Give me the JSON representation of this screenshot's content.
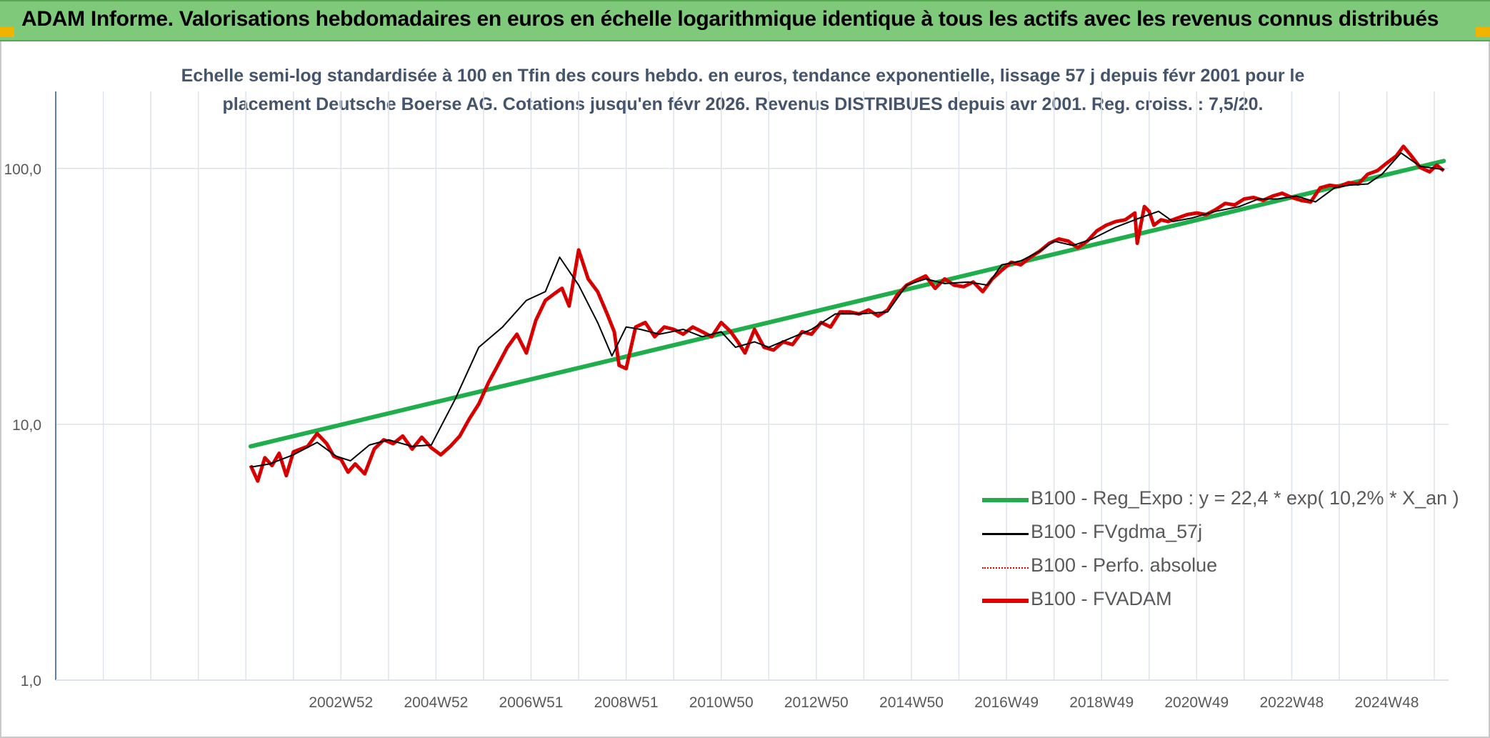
{
  "banner": {
    "title": "ADAM Informe. Valorisations hebdomadaires en euros en échelle logarithmique identique à tous les actifs avec les revenus connus distribués"
  },
  "colors": {
    "banner_bg": "#7fc97a",
    "corner": "#f2b200",
    "reg_expo": "#1fae4b",
    "fvgdma": "#000000",
    "perfo": "#e00000",
    "fvadam": "#e00000",
    "grid": "#dde3ea",
    "axis": "#5b7fb5"
  },
  "chart_data": {
    "type": "line",
    "title": "Echelle semi-log standardisée à 100 en Tfin des cours hebdo. en euros, tendance exponentielle, lissage 57 j depuis févr 2001 pour le placement Deutsche Boerse AG. Cotations jusqu'en févr 2026. Revenus DISTRIBUES depuis avr 2001. Reg. croiss. : 7,5/20.",
    "y_scale": "log",
    "ylim": [
      1,
      200
    ],
    "xlim": [
      1997.0,
      2026.3
    ],
    "y_ticks": [
      {
        "value": 1,
        "label": "1,0"
      },
      {
        "value": 10,
        "label": "10,0"
      },
      {
        "value": 100,
        "label": "100,0"
      }
    ],
    "x_ticks": [
      {
        "value": 2003.0,
        "label": "2002W52"
      },
      {
        "value": 2005.0,
        "label": "2004W52"
      },
      {
        "value": 2007.0,
        "label": "2006W51"
      },
      {
        "value": 2009.0,
        "label": "2008W51"
      },
      {
        "value": 2011.0,
        "label": "2010W50"
      },
      {
        "value": 2013.0,
        "label": "2012W50"
      },
      {
        "value": 2015.0,
        "label": "2014W50"
      },
      {
        "value": 2017.0,
        "label": "2016W49"
      },
      {
        "value": 2019.0,
        "label": "2018W49"
      },
      {
        "value": 2021.0,
        "label": "2020W49"
      },
      {
        "value": 2023.0,
        "label": "2022W48"
      },
      {
        "value": 2025.0,
        "label": "2024W48"
      }
    ],
    "grid": true,
    "legend_position": "bottom-right",
    "series": [
      {
        "name": "B100 - Reg_Expo : y = 22,4 * exp( 10,2% *  X_an )",
        "x": [
          2001.1,
          2026.2
        ],
        "y": [
          8.2,
          107
        ]
      },
      {
        "name": "B100 - FVgdma_57j",
        "x": [
          2001.1,
          2001.5,
          2002.0,
          2002.5,
          2002.9,
          2003.2,
          2003.6,
          2004.0,
          2004.5,
          2004.9,
          2005.4,
          2005.9,
          2006.4,
          2006.9,
          2007.3,
          2007.6,
          2008.0,
          2008.4,
          2008.7,
          2009.0,
          2009.3,
          2009.7,
          2010.2,
          2010.6,
          2011.0,
          2011.3,
          2011.7,
          2012.0,
          2012.4,
          2012.9,
          2013.4,
          2013.9,
          2014.5,
          2014.9,
          2015.3,
          2015.7,
          2016.2,
          2016.6,
          2016.9,
          2017.3,
          2017.7,
          2018.0,
          2018.4,
          2018.8,
          2019.3,
          2019.8,
          2020.2,
          2020.5,
          2020.9,
          2021.4,
          2021.9,
          2022.3,
          2022.7,
          2023.1,
          2023.5,
          2023.9,
          2024.2,
          2024.6,
          2024.9,
          2025.3,
          2025.7,
          2026.2
        ],
        "y": [
          6.8,
          7.0,
          7.6,
          8.5,
          7.5,
          7.2,
          8.3,
          8.7,
          8.2,
          8.3,
          12.5,
          20.0,
          24.0,
          30.5,
          33.0,
          45.0,
          35.0,
          25.0,
          18.5,
          24.0,
          23.5,
          22.5,
          23.5,
          22.0,
          23.0,
          20.0,
          21.0,
          20.0,
          21.5,
          23.5,
          27.0,
          27.0,
          27.5,
          35.0,
          37.0,
          35.5,
          36.0,
          35.0,
          42.0,
          43.5,
          47.5,
          52.0,
          50.0,
          53.0,
          59.0,
          64.0,
          68.0,
          62.0,
          64.0,
          68.0,
          71.0,
          76.0,
          76.0,
          78.0,
          74.0,
          84.0,
          86.0,
          87.0,
          95.0,
          115.0,
          102.0,
          99.0
        ]
      },
      {
        "name": "B100 - Perfo. absolue",
        "x": [
          2001.1,
          2001.25,
          2001.4,
          2001.55,
          2001.7,
          2001.85,
          2002.0,
          2002.15,
          2002.3,
          2002.5,
          2002.7,
          2002.85,
          2003.0,
          2003.15,
          2003.3,
          2003.5,
          2003.7,
          2003.9,
          2004.1,
          2004.3,
          2004.5,
          2004.7,
          2004.9,
          2005.1,
          2005.3,
          2005.5,
          2005.7,
          2005.9,
          2006.1,
          2006.3,
          2006.5,
          2006.7,
          2006.9,
          2007.1,
          2007.3,
          2007.5,
          2007.65,
          2007.8,
          2008.0,
          2008.2,
          2008.4,
          2008.6,
          2008.75,
          2008.85,
          2009.0,
          2009.2,
          2009.4,
          2009.6,
          2009.8,
          2010.0,
          2010.2,
          2010.4,
          2010.6,
          2010.8,
          2011.0,
          2011.2,
          2011.35,
          2011.5,
          2011.7,
          2011.9,
          2012.1,
          2012.3,
          2012.5,
          2012.7,
          2012.9,
          2013.1,
          2013.3,
          2013.5,
          2013.7,
          2013.9,
          2014.1,
          2014.3,
          2014.5,
          2014.7,
          2014.9,
          2015.1,
          2015.3,
          2015.5,
          2015.7,
          2015.9,
          2016.1,
          2016.3,
          2016.5,
          2016.7,
          2016.9,
          2017.1,
          2017.3,
          2017.5,
          2017.7,
          2017.9,
          2018.1,
          2018.3,
          2018.5,
          2018.7,
          2018.9,
          2019.1,
          2019.3,
          2019.5,
          2019.7,
          2019.75,
          2019.9,
          2020.0,
          2020.1,
          2020.25,
          2020.4,
          2020.6,
          2020.8,
          2021.0,
          2021.2,
          2021.4,
          2021.6,
          2021.8,
          2022.0,
          2022.2,
          2022.4,
          2022.6,
          2022.8,
          2023.0,
          2023.2,
          2023.4,
          2023.6,
          2023.8,
          2024.0,
          2024.2,
          2024.4,
          2024.6,
          2024.8,
          2025.0,
          2025.2,
          2025.35,
          2025.5,
          2025.7,
          2025.9,
          2026.05,
          2026.2
        ],
        "y": [
          6.9,
          6.0,
          7.4,
          6.9,
          7.7,
          6.3,
          7.8,
          8.0,
          8.2,
          9.2,
          8.4,
          7.5,
          7.3,
          6.5,
          7.0,
          6.4,
          8.0,
          8.7,
          8.4,
          9.0,
          8.0,
          8.9,
          8.1,
          7.6,
          8.2,
          9.0,
          10.5,
          12.0,
          14.5,
          17.0,
          20.0,
          22.5,
          19.0,
          25.5,
          30.5,
          32.5,
          34.0,
          29.0,
          48.0,
          37.0,
          33.0,
          27.0,
          23.0,
          17.0,
          16.5,
          24.0,
          25.0,
          22.0,
          24.0,
          23.5,
          22.5,
          24.0,
          23.0,
          22.0,
          25.0,
          23.0,
          21.0,
          19.0,
          23.5,
          20.0,
          19.5,
          21.0,
          20.5,
          23.0,
          22.5,
          25.0,
          24.0,
          27.5,
          27.5,
          27.0,
          28.0,
          26.5,
          28.0,
          32.0,
          35.0,
          36.5,
          38.0,
          34.0,
          37.0,
          35.0,
          34.5,
          36.0,
          33.0,
          37.0,
          40.0,
          43.0,
          42.0,
          45.0,
          47.5,
          51.0,
          53.0,
          52.0,
          49.0,
          52.0,
          57.0,
          60.0,
          62.0,
          63.0,
          67.0,
          51.0,
          71.0,
          68.0,
          60.0,
          63.0,
          62.0,
          64.0,
          66.0,
          67.0,
          66.0,
          69.0,
          73.0,
          72.0,
          76.0,
          77.0,
          75.0,
          78.0,
          80.0,
          77.0,
          75.0,
          74.0,
          84.0,
          86.0,
          85.0,
          88.0,
          87.0,
          95.0,
          98.0,
          105.0,
          112.0,
          122.0,
          113.0,
          101.0,
          97.0,
          103.0,
          98.0
        ]
      },
      {
        "name": "B100 - FVADAM",
        "x": [
          2001.1,
          2001.25,
          2001.4,
          2001.55,
          2001.7,
          2001.85,
          2002.0,
          2002.15,
          2002.3,
          2002.5,
          2002.7,
          2002.85,
          2003.0,
          2003.15,
          2003.3,
          2003.5,
          2003.7,
          2003.9,
          2004.1,
          2004.3,
          2004.5,
          2004.7,
          2004.9,
          2005.1,
          2005.3,
          2005.5,
          2005.7,
          2005.9,
          2006.1,
          2006.3,
          2006.5,
          2006.7,
          2006.9,
          2007.1,
          2007.3,
          2007.5,
          2007.65,
          2007.8,
          2008.0,
          2008.2,
          2008.4,
          2008.6,
          2008.75,
          2008.85,
          2009.0,
          2009.2,
          2009.4,
          2009.6,
          2009.8,
          2010.0,
          2010.2,
          2010.4,
          2010.6,
          2010.8,
          2011.0,
          2011.2,
          2011.35,
          2011.5,
          2011.7,
          2011.9,
          2012.1,
          2012.3,
          2012.5,
          2012.7,
          2012.9,
          2013.1,
          2013.3,
          2013.5,
          2013.7,
          2013.9,
          2014.1,
          2014.3,
          2014.5,
          2014.7,
          2014.9,
          2015.1,
          2015.3,
          2015.5,
          2015.7,
          2015.9,
          2016.1,
          2016.3,
          2016.5,
          2016.7,
          2016.9,
          2017.1,
          2017.3,
          2017.5,
          2017.7,
          2017.9,
          2018.1,
          2018.3,
          2018.5,
          2018.7,
          2018.9,
          2019.1,
          2019.3,
          2019.5,
          2019.7,
          2019.75,
          2019.9,
          2020.0,
          2020.1,
          2020.25,
          2020.4,
          2020.6,
          2020.8,
          2021.0,
          2021.2,
          2021.4,
          2021.6,
          2021.8,
          2022.0,
          2022.2,
          2022.4,
          2022.6,
          2022.8,
          2023.0,
          2023.2,
          2023.4,
          2023.6,
          2023.8,
          2024.0,
          2024.2,
          2024.4,
          2024.6,
          2024.8,
          2025.0,
          2025.2,
          2025.35,
          2025.5,
          2025.7,
          2025.9,
          2026.05,
          2026.2
        ],
        "y": [
          6.9,
          6.0,
          7.4,
          6.9,
          7.7,
          6.3,
          7.8,
          8.0,
          8.2,
          9.2,
          8.4,
          7.5,
          7.3,
          6.5,
          7.0,
          6.4,
          8.0,
          8.7,
          8.4,
          9.0,
          8.0,
          8.9,
          8.1,
          7.6,
          8.2,
          9.0,
          10.5,
          12.0,
          14.5,
          17.0,
          20.0,
          22.5,
          19.0,
          25.5,
          30.5,
          32.5,
          34.0,
          29.0,
          48.0,
          37.0,
          33.0,
          27.0,
          23.0,
          17.0,
          16.5,
          24.0,
          25.0,
          22.0,
          24.0,
          23.5,
          22.5,
          24.0,
          23.0,
          22.0,
          25.0,
          23.0,
          21.0,
          19.0,
          23.5,
          20.0,
          19.5,
          21.0,
          20.5,
          23.0,
          22.5,
          25.0,
          24.0,
          27.5,
          27.5,
          27.0,
          28.0,
          26.5,
          28.0,
          32.0,
          35.0,
          36.5,
          38.0,
          34.0,
          37.0,
          35.0,
          34.5,
          36.0,
          33.0,
          37.0,
          40.0,
          43.0,
          42.0,
          45.0,
          47.5,
          51.0,
          53.0,
          52.0,
          49.0,
          52.0,
          57.0,
          60.0,
          62.0,
          63.0,
          67.0,
          51.0,
          71.0,
          68.0,
          60.0,
          63.0,
          62.0,
          64.0,
          66.0,
          67.0,
          66.0,
          69.0,
          73.0,
          72.0,
          76.0,
          77.0,
          75.0,
          78.0,
          80.0,
          77.0,
          75.0,
          74.0,
          84.0,
          86.0,
          85.0,
          88.0,
          87.0,
          95.0,
          98.0,
          105.0,
          112.0,
          122.0,
          113.0,
          101.0,
          97.0,
          103.0,
          98.0
        ]
      }
    ]
  }
}
